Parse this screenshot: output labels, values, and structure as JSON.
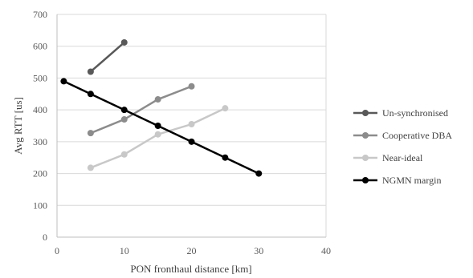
{
  "chart_data": {
    "type": "line",
    "xlabel": "PON fronthaul distance [km]",
    "ylabel": "Avg RTT  [us]",
    "xlim": [
      0,
      40
    ],
    "ylim": [
      0,
      700
    ],
    "x_ticks": [
      0,
      10,
      20,
      30,
      40
    ],
    "y_ticks": [
      0,
      100,
      200,
      300,
      400,
      500,
      600,
      700
    ],
    "grid": "horizontal",
    "legend_position": "right",
    "series": [
      {
        "name": "Un-synchronised",
        "color": "#595959",
        "x": [
          5,
          10
        ],
        "y": [
          520,
          612
        ]
      },
      {
        "name": "Cooperative DBA",
        "color": "#8c8c8c",
        "x": [
          5,
          10,
          15,
          20
        ],
        "y": [
          327,
          370,
          433,
          474
        ]
      },
      {
        "name": "Near-ideal",
        "color": "#c8c8c8",
        "x": [
          5,
          10,
          15,
          20,
          25
        ],
        "y": [
          218,
          260,
          323,
          355,
          405
        ]
      },
      {
        "name": "NGMN margin",
        "color": "#000000",
        "x": [
          1,
          5,
          10,
          15,
          20,
          25,
          30
        ],
        "y": [
          490,
          450,
          400,
          350,
          300,
          250,
          200
        ]
      }
    ]
  }
}
